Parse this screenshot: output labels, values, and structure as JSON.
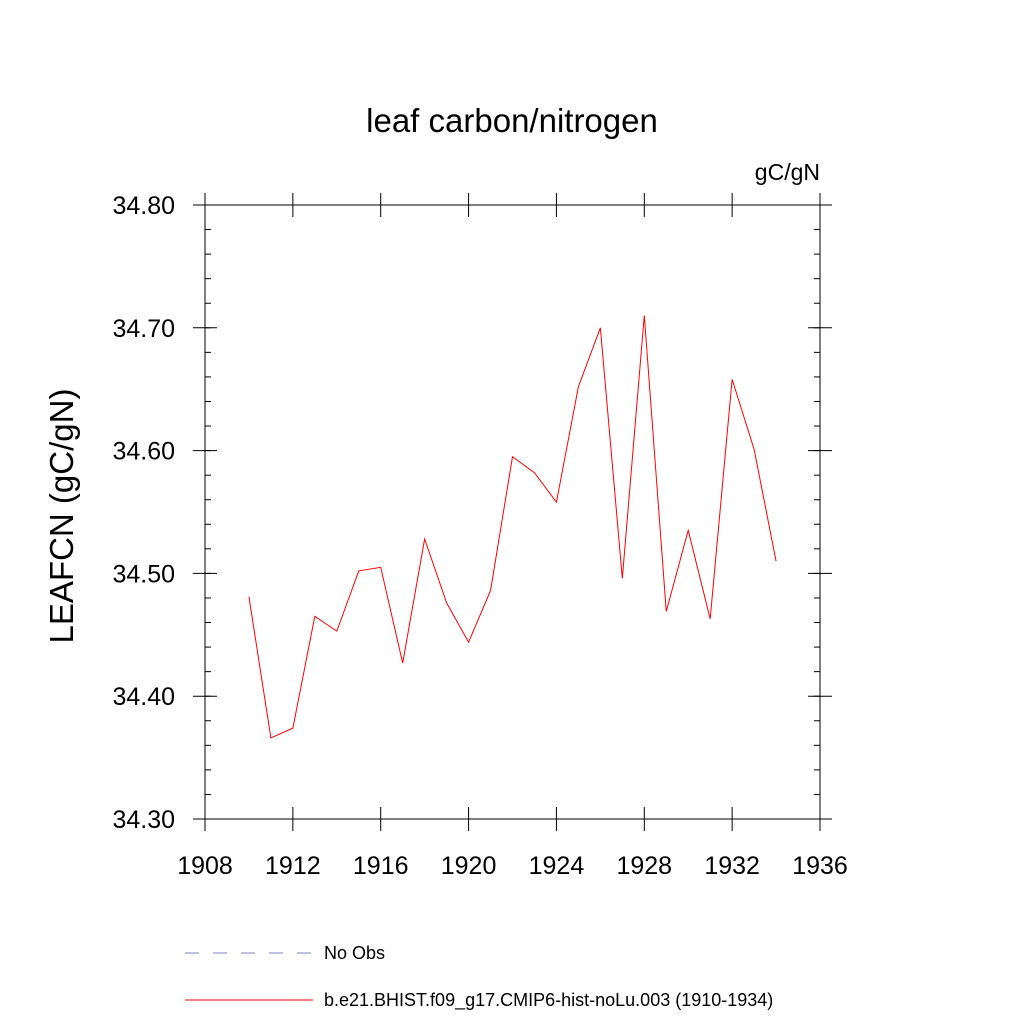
{
  "chart_data": {
    "type": "line",
    "title": "leaf carbon/nitrogen",
    "units": "gC/gN",
    "xlabel": "",
    "ylabel": "LEAFCN  (gC/gN)",
    "xlim": [
      1908,
      1936
    ],
    "ylim": [
      34.3,
      34.8
    ],
    "x_ticks": [
      1908,
      1912,
      1916,
      1920,
      1924,
      1928,
      1932,
      1936
    ],
    "y_ticks": [
      "34.30",
      "34.40",
      "34.50",
      "34.60",
      "34.70",
      "34.80"
    ],
    "series": [
      {
        "name": "b.e21.BHIST.f09_g17.CMIP6-hist-noLu.003 (1910-1934)",
        "color": "#ff0000",
        "style": "solid",
        "x": [
          1910,
          1911,
          1912,
          1913,
          1914,
          1915,
          1916,
          1917,
          1918,
          1919,
          1920,
          1921,
          1922,
          1923,
          1924,
          1925,
          1926,
          1927,
          1928,
          1929,
          1930,
          1931,
          1932,
          1933,
          1934
        ],
        "y": [
          34.481,
          34.366,
          34.374,
          34.465,
          34.453,
          34.502,
          34.505,
          34.427,
          34.528,
          34.476,
          34.444,
          34.486,
          34.595,
          34.582,
          34.558,
          34.652,
          34.7,
          34.496,
          34.71,
          34.469,
          34.535,
          34.463,
          34.658,
          34.601,
          34.51
        ]
      }
    ],
    "legend": [
      {
        "label": "No Obs",
        "color": "#8080c0",
        "style": "dashed"
      },
      {
        "label": "b.e21.BHIST.f09_g17.CMIP6-hist-noLu.003 (1910-1934)",
        "color": "#ff0000",
        "style": "solid"
      }
    ]
  }
}
